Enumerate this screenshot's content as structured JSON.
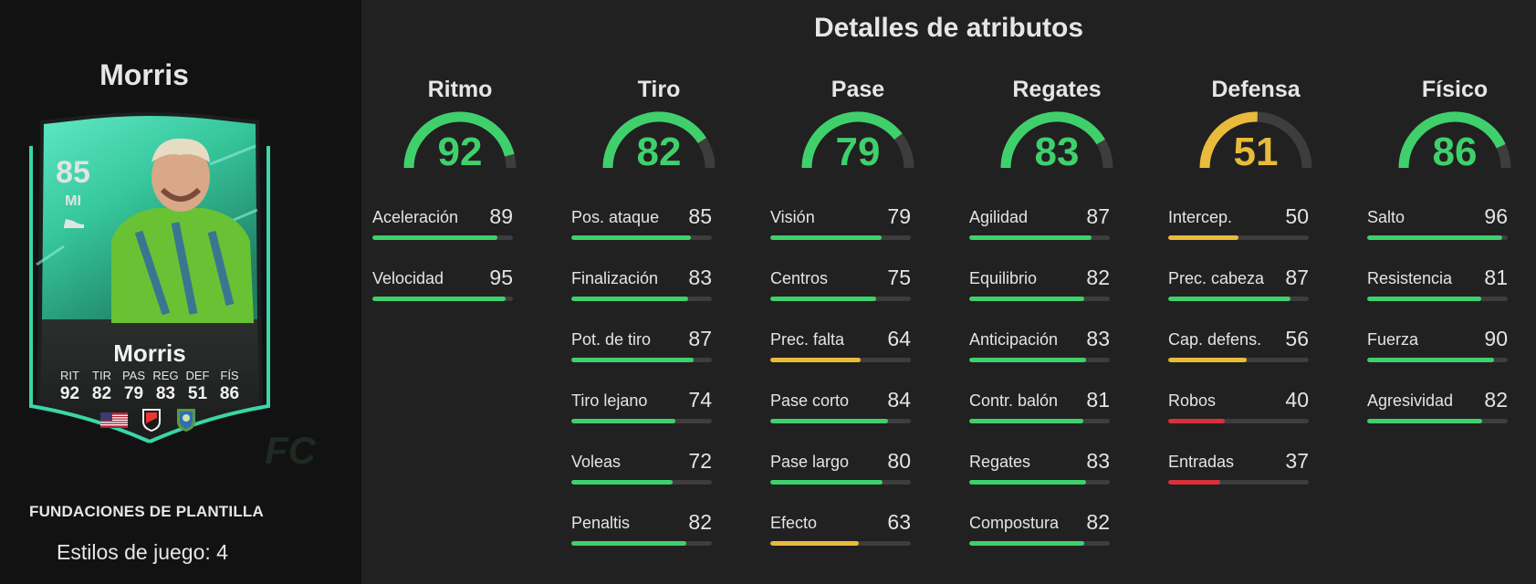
{
  "player": {
    "name": "Morris",
    "card": {
      "rating": "85",
      "position": "MI",
      "name": "Morris",
      "stats": [
        {
          "label": "RIT",
          "value": "92"
        },
        {
          "label": "TIR",
          "value": "82"
        },
        {
          "label": "PAS",
          "value": "79"
        },
        {
          "label": "REG",
          "value": "83"
        },
        {
          "label": "DEF",
          "value": "51"
        },
        {
          "label": "FÍS",
          "value": "86"
        }
      ],
      "badges": [
        "us-flag-icon",
        "mls-logo-icon",
        "seattle-sounders-crest-icon"
      ],
      "watermark": "FC"
    },
    "squad_label": "FUNDACIONES DE PLANTILLA",
    "playstyles": "Estilos de juego: 4"
  },
  "colors": {
    "green": "#3fd06c",
    "yellow": "#e9bb3a",
    "red": "#d8313b",
    "track": "#3d3d3d",
    "card_teal": "#3ad6a8"
  },
  "title": "Detalles de atributos",
  "categories": [
    {
      "name": "Ritmo",
      "value": 92,
      "attributes": [
        {
          "name": "Aceleración",
          "value": 89
        },
        {
          "name": "Velocidad",
          "value": 95
        }
      ]
    },
    {
      "name": "Tiro",
      "value": 82,
      "attributes": [
        {
          "name": "Pos. ataque",
          "value": 85
        },
        {
          "name": "Finalización",
          "value": 83
        },
        {
          "name": "Pot. de tiro",
          "value": 87
        },
        {
          "name": "Tiro lejano",
          "value": 74
        },
        {
          "name": "Voleas",
          "value": 72
        },
        {
          "name": "Penaltis",
          "value": 82
        }
      ]
    },
    {
      "name": "Pase",
      "value": 79,
      "attributes": [
        {
          "name": "Visión",
          "value": 79
        },
        {
          "name": "Centros",
          "value": 75
        },
        {
          "name": "Prec. falta",
          "value": 64
        },
        {
          "name": "Pase corto",
          "value": 84
        },
        {
          "name": "Pase largo",
          "value": 80
        },
        {
          "name": "Efecto",
          "value": 63
        }
      ]
    },
    {
      "name": "Regates",
      "value": 83,
      "attributes": [
        {
          "name": "Agilidad",
          "value": 87
        },
        {
          "name": "Equilibrio",
          "value": 82
        },
        {
          "name": "Anticipación",
          "value": 83
        },
        {
          "name": "Contr. balón",
          "value": 81
        },
        {
          "name": "Regates",
          "value": 83
        },
        {
          "name": "Compostura",
          "value": 82
        }
      ]
    },
    {
      "name": "Defensa",
      "value": 51,
      "attributes": [
        {
          "name": "Intercep.",
          "value": 50
        },
        {
          "name": "Prec. cabeza",
          "value": 87
        },
        {
          "name": "Cap. defens.",
          "value": 56
        },
        {
          "name": "Robos",
          "value": 40
        },
        {
          "name": "Entradas",
          "value": 37
        }
      ]
    },
    {
      "name": "Físico",
      "value": 86,
      "attributes": [
        {
          "name": "Salto",
          "value": 96
        },
        {
          "name": "Resistencia",
          "value": 81
        },
        {
          "name": "Fuerza",
          "value": 90
        },
        {
          "name": "Agresividad",
          "value": 82
        }
      ]
    }
  ]
}
